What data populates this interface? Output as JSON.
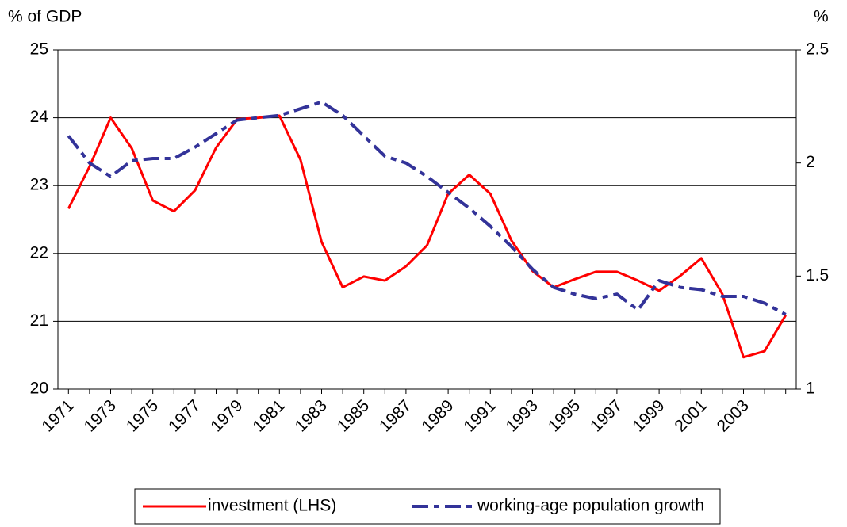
{
  "chart_data": {
    "type": "line",
    "y_label": "% of GDP",
    "y2_label": "%",
    "categories": [
      "1971",
      null,
      "1973",
      null,
      "1975",
      null,
      "1977",
      null,
      "1979",
      null,
      "1981",
      null,
      "1983",
      null,
      "1985",
      null,
      "1987",
      null,
      "1989",
      null,
      "1991",
      null,
      "1993",
      null,
      "1995",
      null,
      "1997",
      null,
      "1999",
      null,
      "2001",
      null,
      "2003",
      null,
      null
    ],
    "series": [
      {
        "name": "investment (LHS)",
        "color": "#ff0000",
        "dash": "solid",
        "values": [
          22.66,
          23.28,
          24.0,
          23.55,
          22.78,
          22.62,
          22.93,
          23.56,
          23.98,
          24.0,
          24.03,
          23.38,
          22.17,
          21.5,
          21.66,
          21.6,
          21.81,
          22.12,
          22.88,
          23.16,
          22.88,
          22.19,
          21.74,
          21.5,
          21.62,
          21.73,
          21.73,
          21.6,
          21.45,
          21.67,
          21.93,
          21.4,
          20.47,
          20.56,
          21.09
        ]
      },
      {
        "name": "working-age population growth",
        "color": "#333399",
        "dash": "dash-dot",
        "axis": "y2",
        "values": [
          2.12,
          2.0,
          1.94,
          2.01,
          2.02,
          2.02,
          2.07,
          2.13,
          2.19,
          2.2,
          2.21,
          2.24,
          2.27,
          2.21,
          2.12,
          2.03,
          2.0,
          1.94,
          1.87,
          1.8,
          1.72,
          1.63,
          1.53,
          1.45,
          1.42,
          1.4,
          1.42,
          1.35,
          1.48,
          1.45,
          1.44,
          1.41,
          1.41,
          1.38,
          1.33
        ]
      }
    ],
    "ylim": [
      20,
      25
    ],
    "yticks": [
      20,
      21,
      22,
      23,
      24,
      25
    ],
    "y2lim": [
      1,
      2.5
    ],
    "y2ticks": [
      1,
      1.5,
      2,
      2.5
    ],
    "grid": true,
    "legend": "bottom"
  }
}
